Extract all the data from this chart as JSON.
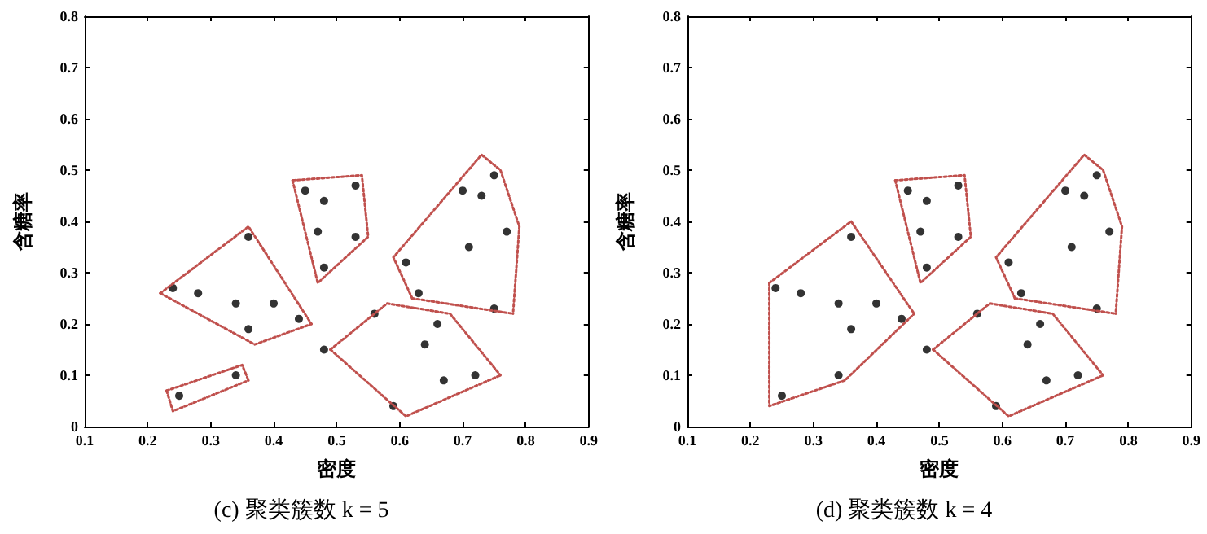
{
  "chart_data": [
    {
      "type": "scatter",
      "title": "(c) 聚类簇数 k = 5",
      "xlabel": "密度",
      "ylabel": "含糖率",
      "xlim": [
        0.1,
        0.9
      ],
      "ylim": [
        0,
        0.8
      ],
      "xticks": [
        0.1,
        0.2,
        0.3,
        0.4,
        0.5,
        0.6,
        0.7,
        0.8,
        0.9
      ],
      "yticks": [
        0,
        0.1,
        0.2,
        0.3,
        0.4,
        0.5,
        0.6,
        0.7,
        0.8
      ],
      "grid": false,
      "marker": "circle",
      "series": [
        {
          "color": "#000000",
          "x": [
            0.7,
            0.77,
            0.63,
            0.61,
            0.56,
            0.4,
            0.48,
            0.44,
            0.67,
            0.24,
            0.25,
            0.34,
            0.64,
            0.66,
            0.36,
            0.59,
            0.72,
            0.36,
            0.34,
            0.28,
            0.75,
            0.71,
            0.48,
            0.48,
            0.53,
            0.75,
            0.53,
            0.47,
            0.73,
            0.45
          ],
          "values": [
            0.46,
            0.38,
            0.26,
            0.32,
            0.22,
            0.24,
            0.15,
            0.21,
            0.09,
            0.27,
            0.06,
            0.1,
            0.16,
            0.2,
            0.37,
            0.04,
            0.1,
            0.19,
            0.24,
            0.26,
            0.23,
            0.35,
            0.31,
            0.44,
            0.37,
            0.49,
            0.47,
            0.38,
            0.45,
            0.46
          ]
        },
        {
          "type": "line",
          "line_style": "dotted",
          "marker": "none",
          "color": "#c0504d",
          "x": [
            0.22,
            0.36,
            0.46
          ],
          "values": [
            0.26,
            0.39,
            0.2
          ]
        },
        {
          "type": "line",
          "line_style": "dotted",
          "marker": "none",
          "color": "#c0504d",
          "x": [
            0.22,
            0.37,
            0.46
          ],
          "values": [
            0.26,
            0.16,
            0.2
          ]
        },
        {
          "type": "line",
          "line_style": "dotted",
          "marker": "none",
          "color": "#c0504d",
          "x": [
            0.23,
            0.35,
            0.36
          ],
          "values": [
            0.07,
            0.12,
            0.09
          ]
        },
        {
          "type": "line",
          "line_style": "dotted",
          "marker": "none",
          "color": "#c0504d",
          "x": [
            0.23,
            0.24,
            0.36
          ],
          "values": [
            0.07,
            0.03,
            0.09
          ]
        },
        {
          "type": "line",
          "line_style": "dotted",
          "marker": "none",
          "color": "#c0504d",
          "x": [
            0.43,
            0.54,
            0.55
          ],
          "values": [
            0.48,
            0.49,
            0.37
          ]
        },
        {
          "type": "line",
          "line_style": "dotted",
          "marker": "none",
          "color": "#c0504d",
          "x": [
            0.43,
            0.47,
            0.55
          ],
          "values": [
            0.48,
            0.28,
            0.37
          ]
        },
        {
          "type": "line",
          "line_style": "dotted",
          "marker": "none",
          "color": "#c0504d",
          "x": [
            0.62,
            0.59,
            0.73,
            0.76,
            0.79,
            0.78
          ],
          "values": [
            0.25,
            0.33,
            0.53,
            0.5,
            0.39,
            0.22
          ]
        },
        {
          "type": "line",
          "line_style": "dotted",
          "marker": "none",
          "color": "#c0504d",
          "x": [
            0.62,
            0.78
          ],
          "values": [
            0.25,
            0.22
          ]
        },
        {
          "type": "line",
          "line_style": "dotted",
          "marker": "none",
          "color": "#c0504d",
          "x": [
            0.49,
            0.58,
            0.68,
            0.76
          ],
          "values": [
            0.15,
            0.24,
            0.22,
            0.1
          ]
        },
        {
          "type": "line",
          "line_style": "dotted",
          "marker": "none",
          "color": "#c0504d",
          "x": [
            0.49,
            0.61,
            0.76
          ],
          "values": [
            0.15,
            0.02,
            0.1
          ]
        }
      ]
    },
    {
      "type": "scatter",
      "title": "(d) 聚类簇数 k = 4",
      "xlabel": "密度",
      "ylabel": "含糖率",
      "xlim": [
        0.1,
        0.9
      ],
      "ylim": [
        0,
        0.8
      ],
      "xticks": [
        0.1,
        0.2,
        0.3,
        0.4,
        0.5,
        0.6,
        0.7,
        0.8,
        0.9
      ],
      "yticks": [
        0,
        0.1,
        0.2,
        0.3,
        0.4,
        0.5,
        0.6,
        0.7,
        0.8
      ],
      "grid": false,
      "marker": "circle",
      "series": [
        {
          "color": "#000000",
          "x": [
            0.7,
            0.77,
            0.63,
            0.61,
            0.56,
            0.4,
            0.48,
            0.44,
            0.67,
            0.24,
            0.25,
            0.34,
            0.64,
            0.66,
            0.36,
            0.59,
            0.72,
            0.36,
            0.34,
            0.28,
            0.75,
            0.71,
            0.48,
            0.48,
            0.53,
            0.75,
            0.53,
            0.47,
            0.73,
            0.45
          ],
          "values": [
            0.46,
            0.38,
            0.26,
            0.32,
            0.22,
            0.24,
            0.15,
            0.21,
            0.09,
            0.27,
            0.06,
            0.1,
            0.16,
            0.2,
            0.37,
            0.04,
            0.1,
            0.19,
            0.24,
            0.26,
            0.23,
            0.35,
            0.31,
            0.44,
            0.37,
            0.49,
            0.47,
            0.38,
            0.45,
            0.46
          ]
        },
        {
          "type": "line",
          "line_style": "dotted",
          "marker": "none",
          "color": "#c0504d",
          "x": [
            0.23,
            0.36,
            0.46
          ],
          "values": [
            0.28,
            0.4,
            0.22
          ]
        },
        {
          "type": "line",
          "line_style": "dotted",
          "marker": "none",
          "color": "#c0504d",
          "x": [
            0.23,
            0.23,
            0.35,
            0.46
          ],
          "values": [
            0.28,
            0.04,
            0.09,
            0.22
          ]
        },
        {
          "type": "line",
          "line_style": "dotted",
          "marker": "none",
          "color": "#c0504d",
          "x": [
            0.43,
            0.54,
            0.55
          ],
          "values": [
            0.48,
            0.49,
            0.37
          ]
        },
        {
          "type": "line",
          "line_style": "dotted",
          "marker": "none",
          "color": "#c0504d",
          "x": [
            0.43,
            0.47,
            0.55
          ],
          "values": [
            0.48,
            0.28,
            0.37
          ]
        },
        {
          "type": "line",
          "line_style": "dotted",
          "marker": "none",
          "color": "#c0504d",
          "x": [
            0.62,
            0.59,
            0.73,
            0.76,
            0.79,
            0.78
          ],
          "values": [
            0.25,
            0.33,
            0.53,
            0.5,
            0.39,
            0.22
          ]
        },
        {
          "type": "line",
          "line_style": "dotted",
          "marker": "none",
          "color": "#c0504d",
          "x": [
            0.62,
            0.78
          ],
          "values": [
            0.25,
            0.22
          ]
        },
        {
          "type": "line",
          "line_style": "dotted",
          "marker": "none",
          "color": "#c0504d",
          "x": [
            0.49,
            0.58,
            0.68,
            0.76
          ],
          "values": [
            0.15,
            0.24,
            0.22,
            0.1
          ]
        },
        {
          "type": "line",
          "line_style": "dotted",
          "marker": "none",
          "color": "#c0504d",
          "x": [
            0.49,
            0.61,
            0.76
          ],
          "values": [
            0.15,
            0.02,
            0.1
          ]
        }
      ]
    }
  ]
}
